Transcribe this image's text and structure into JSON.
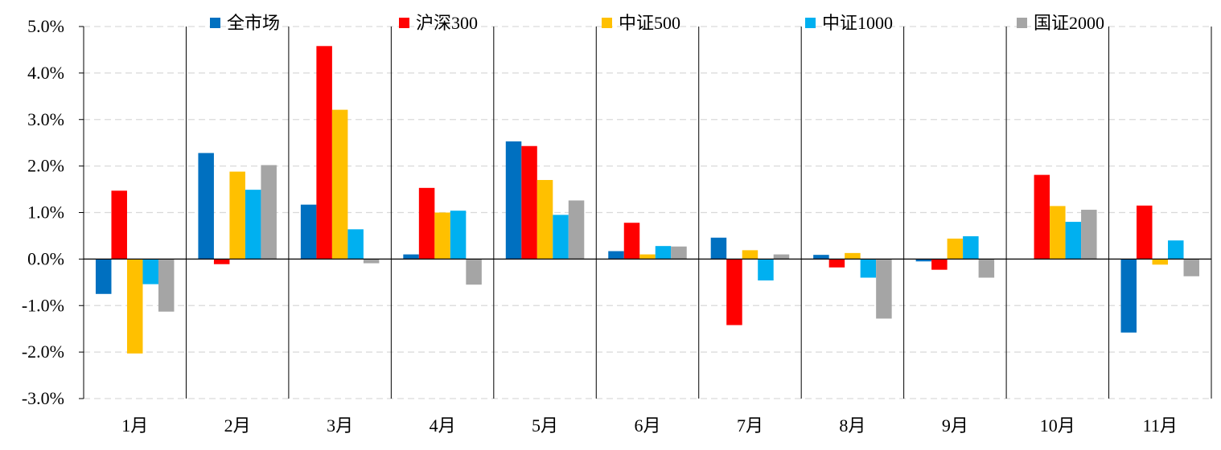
{
  "chart_data": {
    "type": "bar",
    "title": "",
    "xlabel": "",
    "ylabel": "",
    "ylim": [
      -3.0,
      5.0
    ],
    "yticks": [
      "-3.0%",
      "-2.0%",
      "-1.0%",
      "0.0%",
      "1.0%",
      "2.0%",
      "3.0%",
      "4.0%",
      "5.0%"
    ],
    "grid": true,
    "legend_position": "top",
    "categories": [
      "1月",
      "2月",
      "3月",
      "4月",
      "5月",
      "6月",
      "7月",
      "8月",
      "9月",
      "10月",
      "11月"
    ],
    "series": [
      {
        "name": "全市场",
        "color": "#0070C0",
        "values": [
          -0.75,
          2.28,
          1.17,
          0.1,
          2.53,
          0.17,
          0.46,
          0.09,
          -0.05,
          0.0,
          -1.58
        ]
      },
      {
        "name": "沪深300",
        "color": "#FF0000",
        "values": [
          1.47,
          -0.11,
          4.58,
          1.53,
          2.43,
          0.78,
          -1.42,
          -0.18,
          -0.23,
          1.81,
          1.15
        ]
      },
      {
        "name": "中证500",
        "color": "#FFC000",
        "values": [
          -2.03,
          1.88,
          3.21,
          1.0,
          1.7,
          0.1,
          0.19,
          0.13,
          0.44,
          1.14,
          -0.12
        ]
      },
      {
        "name": "中证1000",
        "color": "#00B0F0",
        "values": [
          -0.54,
          1.49,
          0.64,
          1.04,
          0.95,
          0.28,
          -0.46,
          -0.4,
          0.49,
          0.8,
          0.4
        ]
      },
      {
        "name": "国证2000",
        "color": "#A5A5A5",
        "values": [
          -1.13,
          2.02,
          -0.09,
          -0.55,
          1.26,
          0.27,
          0.1,
          -1.28,
          -0.4,
          1.06,
          -0.37
        ]
      }
    ]
  }
}
